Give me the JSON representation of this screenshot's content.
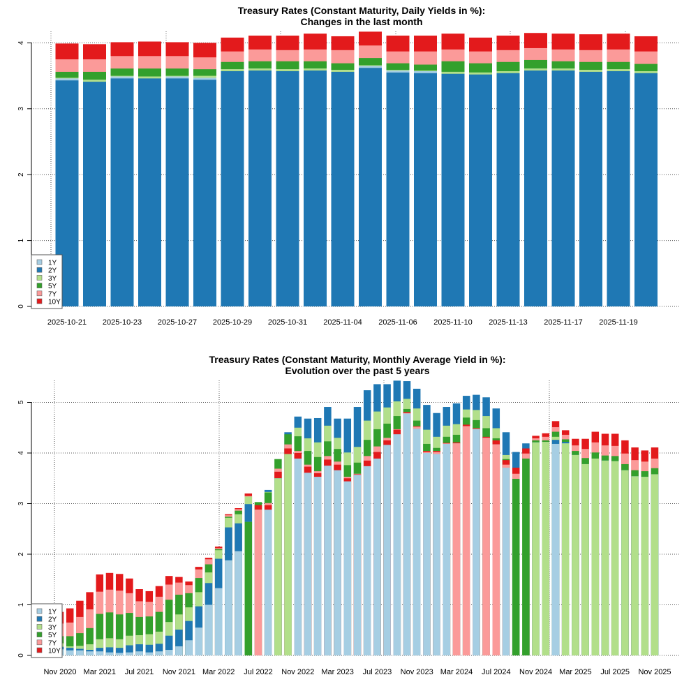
{
  "colors": {
    "1Y": "#a6cee3",
    "2Y": "#1f78b4",
    "3Y": "#b2df8a",
    "5Y": "#33a02c",
    "7Y": "#fb9a99",
    "10Y": "#e31a1c"
  },
  "chart_data": [
    {
      "type": "bar",
      "title": "Treasury Rates (Constant Maturity, Daily Yields in %):",
      "subtitle": "Changes in the last month",
      "x_tick_labels": [
        "2025-10-21",
        "2025-10-23",
        "2025-10-27",
        "2025-10-29",
        "2025-10-31",
        "2025-11-04",
        "2025-11-06",
        "2025-11-10",
        "2025-11-13",
        "2025-11-17",
        "2025-11-19"
      ],
      "y_ticks": [
        "0",
        "1",
        "2",
        "3",
        "4"
      ],
      "ylim": [
        0,
        4.2
      ],
      "grid": true,
      "legend": "bottom-left",
      "bar_mode": "overlapping",
      "series": [
        {
          "name": "1Y",
          "values": [
            3.46,
            3.44,
            3.49,
            3.49,
            3.49,
            3.47,
            3.6,
            3.61,
            3.6,
            3.61,
            3.59,
            3.65,
            3.58,
            3.57,
            3.56,
            3.55,
            3.57,
            3.61,
            3.61,
            3.59,
            3.6,
            3.57
          ]
        },
        {
          "name": "2Y",
          "values": [
            3.43,
            3.41,
            3.46,
            3.46,
            3.46,
            3.44,
            3.57,
            3.58,
            3.57,
            3.58,
            3.56,
            3.62,
            3.55,
            3.54,
            3.53,
            3.52,
            3.54,
            3.58,
            3.58,
            3.56,
            3.57,
            3.54
          ]
        },
        {
          "name": "3Y",
          "values": [
            3.47,
            3.44,
            3.5,
            3.49,
            3.5,
            3.5,
            3.6,
            3.61,
            3.6,
            3.61,
            3.59,
            3.66,
            3.59,
            3.58,
            3.56,
            3.55,
            3.57,
            3.61,
            3.61,
            3.59,
            3.6,
            3.57
          ]
        },
        {
          "name": "5Y",
          "values": [
            3.56,
            3.56,
            3.61,
            3.61,
            3.61,
            3.6,
            3.71,
            3.72,
            3.72,
            3.72,
            3.69,
            3.77,
            3.69,
            3.67,
            3.72,
            3.69,
            3.71,
            3.74,
            3.72,
            3.71,
            3.71,
            3.68
          ]
        },
        {
          "name": "7Y",
          "values": [
            3.75,
            3.75,
            3.8,
            3.8,
            3.8,
            3.78,
            3.87,
            3.9,
            3.89,
            3.9,
            3.89,
            3.96,
            3.87,
            3.87,
            3.9,
            3.87,
            3.89,
            3.92,
            3.9,
            3.89,
            3.9,
            3.87
          ]
        },
        {
          "name": "10Y",
          "values": [
            3.99,
            3.98,
            4.01,
            4.02,
            4.01,
            4.0,
            4.08,
            4.11,
            4.11,
            4.14,
            4.1,
            4.17,
            4.11,
            4.11,
            4.14,
            4.08,
            4.11,
            4.15,
            4.14,
            4.13,
            4.14,
            4.1
          ]
        }
      ]
    },
    {
      "type": "bar",
      "title": "Treasury Rates (Constant Maturity, Monthly Average Yield in %):",
      "subtitle": "Evolution over the past 5 years",
      "x_tick_labels": [
        "Nov 2020",
        "Mar 2021",
        "Jul 2021",
        "Nov 2021",
        "Mar 2022",
        "Jul 2022",
        "Nov 2022",
        "Mar 2023",
        "Jul 2023",
        "Nov 2023",
        "Mar 2024",
        "Jul 2024",
        "Nov 2024",
        "Mar 2025",
        "Jul 2025",
        "Nov 2025"
      ],
      "y_ticks": [
        "0",
        "1",
        "2",
        "3",
        "4",
        "5"
      ],
      "ylim": [
        0,
        5.5
      ],
      "grid": true,
      "legend": "bottom-left",
      "bar_mode": "overlapping",
      "series": [
        {
          "name": "1Y",
          "values": [
            0.12,
            0.1,
            0.1,
            0.08,
            0.08,
            0.06,
            0.05,
            0.06,
            0.08,
            0.06,
            0.08,
            0.11,
            0.18,
            0.3,
            0.55,
            1.0,
            1.33,
            1.88,
            2.06,
            2.64,
            2.88,
            2.88,
            3.5,
            3.98,
            3.89,
            3.61,
            3.53,
            3.75,
            3.66,
            3.44,
            3.57,
            3.74,
            3.89,
            4.16,
            4.37,
            4.78,
            4.48,
            4.0,
            3.98,
            4.18,
            4.19,
            4.53,
            4.47,
            4.3,
            4.17,
            3.71,
            3.49,
            3.89,
            4.21,
            4.22,
            4.18,
            4.19,
            3.96,
            3.78,
            3.89,
            3.85,
            3.84,
            3.66,
            3.54,
            3.53,
            3.58
          ]
        },
        {
          "name": "2Y",
          "values": [
            0.17,
            0.15,
            0.13,
            0.11,
            0.15,
            0.16,
            0.15,
            0.2,
            0.22,
            0.21,
            0.23,
            0.39,
            0.51,
            0.68,
            0.97,
            1.43,
            1.91,
            2.53,
            2.61,
            2.99,
            2.88,
            3.27,
            3.5,
            4.41,
            4.72,
            4.68,
            4.69,
            4.91,
            4.68,
            4.68,
            4.91,
            5.24,
            5.36,
            5.36,
            5.43,
            5.42,
            5.27,
            4.95,
            4.79,
            4.91,
            4.98,
            5.13,
            5.15,
            5.1,
            4.88,
            4.41,
            4.02,
            4.19,
            4.21,
            4.22,
            4.26,
            4.22,
            3.96,
            3.78,
            3.89,
            3.85,
            3.84,
            3.66,
            3.54,
            3.53,
            3.58
          ]
        },
        {
          "name": "3Y",
          "values": [
            0.24,
            0.18,
            0.19,
            0.22,
            0.32,
            0.34,
            0.32,
            0.39,
            0.4,
            0.42,
            0.47,
            0.66,
            0.81,
            0.95,
            1.25,
            1.64,
            2.08,
            2.72,
            2.79,
            3.14,
            2.88,
            3.23,
            3.5,
            3.98,
            4.5,
            4.29,
            4.21,
            4.54,
            4.3,
            4.01,
            4.12,
            4.64,
            4.82,
            4.9,
            5.02,
            5.07,
            4.88,
            4.46,
            4.32,
            4.54,
            4.57,
            4.86,
            4.85,
            4.73,
            4.49,
            3.96,
            3.49,
            3.89,
            4.21,
            4.22,
            4.32,
            4.19,
            3.96,
            3.78,
            3.89,
            3.85,
            3.84,
            3.66,
            3.54,
            3.53,
            3.58
          ]
        },
        {
          "name": "5Y",
          "values": [
            0.38,
            0.38,
            0.44,
            0.54,
            0.82,
            0.85,
            0.81,
            0.84,
            0.76,
            0.77,
            0.86,
            1.1,
            1.2,
            1.23,
            1.53,
            1.8,
            2.1,
            2.74,
            2.86,
            2.64,
            3.03,
            3.22,
            3.88,
            4.37,
            4.33,
            4.04,
            3.92,
            4.23,
            4.08,
            3.76,
            3.81,
            4.26,
            4.47,
            4.58,
            4.73,
            4.87,
            4.64,
            4.18,
            4.1,
            4.32,
            4.36,
            4.7,
            4.65,
            4.49,
            4.29,
            3.88,
            3.49,
            3.89,
            4.25,
            4.25,
            4.42,
            4.27,
            4.04,
            3.9,
            4.01,
            3.95,
            3.94,
            3.78,
            3.66,
            3.64,
            3.7
          ]
        },
        {
          "name": "7Y",
          "values": [
            0.63,
            0.65,
            0.76,
            0.91,
            1.26,
            1.3,
            1.28,
            1.23,
            1.07,
            1.06,
            1.16,
            1.4,
            1.44,
            1.39,
            1.7,
            1.9,
            2.12,
            2.77,
            2.89,
            3.15,
            2.88,
            3.01,
            3.69,
            4.17,
            4.04,
            3.77,
            3.64,
            3.94,
            3.83,
            3.53,
            3.59,
            3.94,
            4.13,
            4.3,
            4.47,
            4.79,
            4.52,
            4.02,
            4.02,
            4.19,
            4.19,
            4.53,
            4.48,
            4.3,
            4.17,
            3.77,
            3.59,
            3.99,
            4.29,
            4.32,
            4.51,
            4.36,
            4.15,
            4.08,
            4.21,
            4.15,
            4.14,
            3.99,
            3.86,
            3.83,
            3.89
          ]
        },
        {
          "name": "10Y",
          "values": [
            0.86,
            0.93,
            1.08,
            1.25,
            1.6,
            1.63,
            1.61,
            1.52,
            1.31,
            1.27,
            1.37,
            1.57,
            1.55,
            1.46,
            1.75,
            1.93,
            2.15,
            2.79,
            2.91,
            3.2,
            2.97,
            2.97,
            3.63,
            4.09,
            4.0,
            3.73,
            3.6,
            3.87,
            3.77,
            3.5,
            3.58,
            3.85,
            4.02,
            4.25,
            4.46,
            4.81,
            4.53,
            4.04,
            4.04,
            4.2,
            4.21,
            4.56,
            4.49,
            4.32,
            4.25,
            3.86,
            3.71,
            4.09,
            4.34,
            4.39,
            4.63,
            4.45,
            4.28,
            4.28,
            4.42,
            4.38,
            4.38,
            4.25,
            4.11,
            4.05,
            4.11
          ]
        }
      ]
    }
  ]
}
